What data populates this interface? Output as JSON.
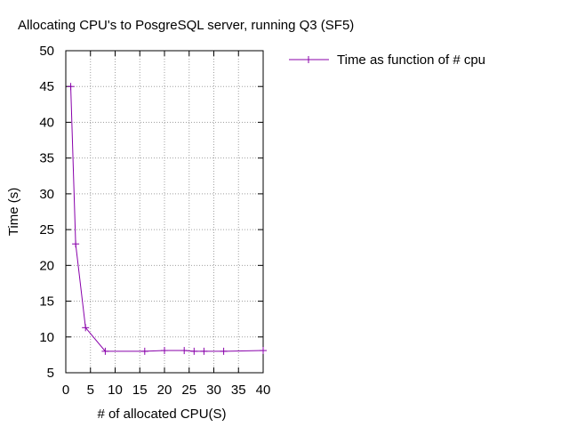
{
  "chart_data": {
    "type": "line",
    "title": "Allocating CPU's to PosgreSQL server, running Q3 (SF5)",
    "xlabel": "# of allocated CPU(S)",
    "ylabel": "Time (s)",
    "xlim": [
      0,
      40
    ],
    "ylim": [
      5,
      50
    ],
    "xticks": [
      0,
      5,
      10,
      15,
      20,
      25,
      30,
      35,
      40
    ],
    "yticks": [
      5,
      10,
      15,
      20,
      25,
      30,
      35,
      40,
      45,
      50
    ],
    "grid": true,
    "legend_position": "top-right outside",
    "series": [
      {
        "name": "Time as function of # cpu",
        "color": "#8800aa",
        "marker": "plus",
        "x": [
          1,
          2,
          4,
          8,
          16,
          20,
          24,
          26,
          28,
          32,
          40
        ],
        "y": [
          45.0,
          23.0,
          11.3,
          8.0,
          8.0,
          8.1,
          8.1,
          8.0,
          8.0,
          8.0,
          8.1
        ]
      }
    ]
  }
}
